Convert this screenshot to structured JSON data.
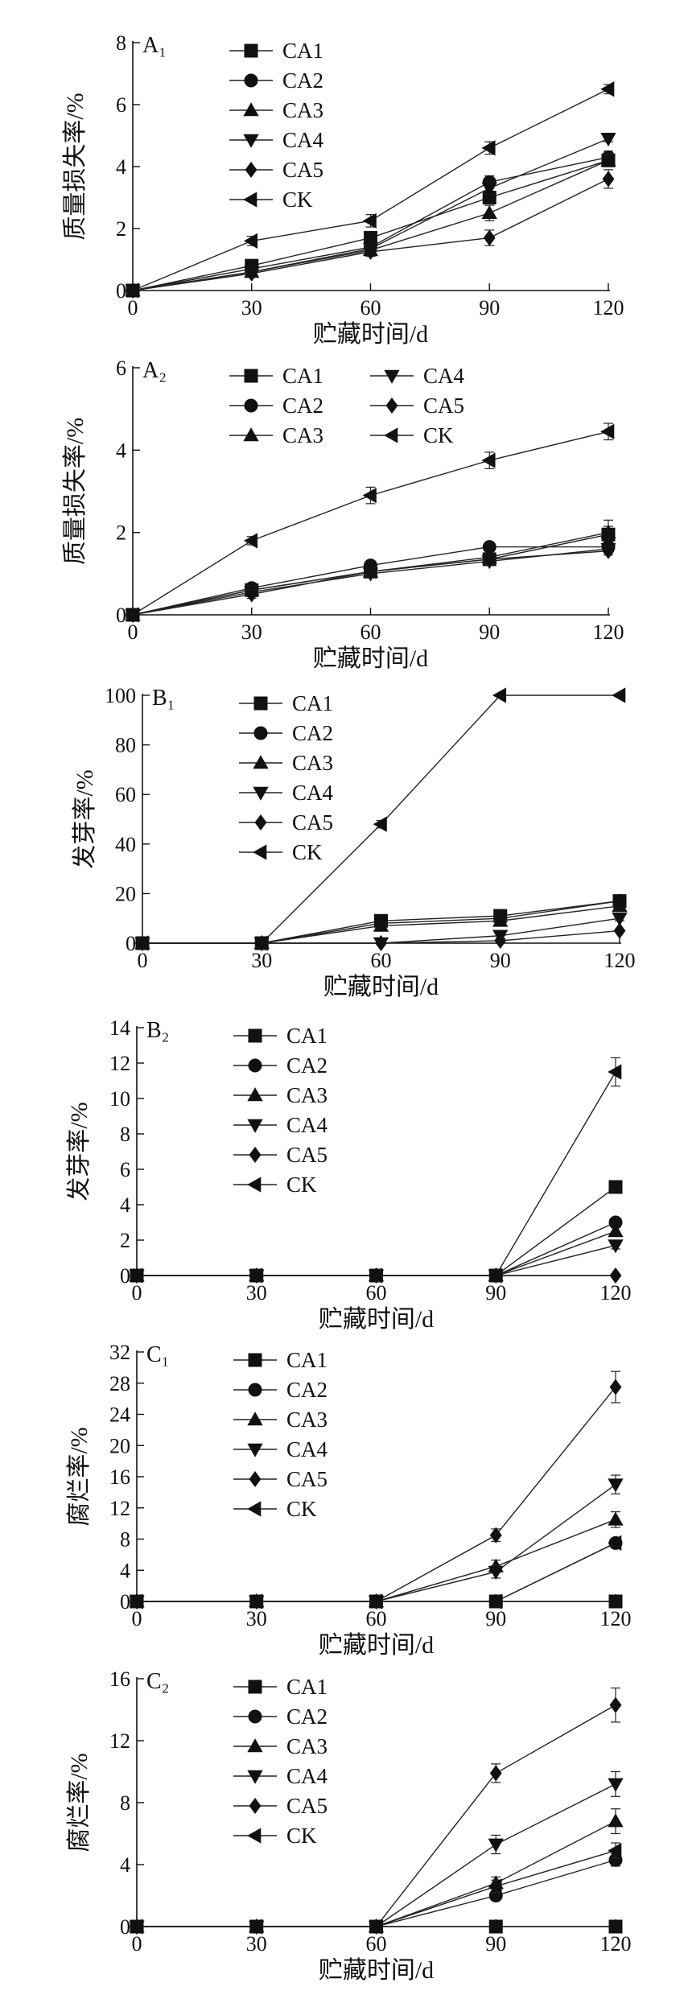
{
  "chart_data": [
    {
      "type": "line",
      "panel_label": "A₁",
      "xlabel": "贮藏时间/d",
      "ylabel": "质量损失率/%",
      "ylim": [
        0,
        8
      ],
      "yticks": [
        0,
        2,
        4,
        6,
        8
      ],
      "x": [
        0,
        30,
        60,
        90,
        120
      ],
      "xticks": [
        0,
        30,
        60,
        90,
        120
      ],
      "legend": {
        "position": "top-left",
        "columns": 1
      },
      "error_bars": true,
      "series": [
        {
          "name": "CA1",
          "marker": "square",
          "values": [
            0,
            0.8,
            1.7,
            3.0,
            4.2
          ],
          "errors": [
            0,
            0.1,
            0.15,
            0.2,
            0.15
          ]
        },
        {
          "name": "CA2",
          "marker": "circle",
          "values": [
            0,
            0.7,
            1.4,
            3.5,
            4.3
          ],
          "errors": [
            0,
            0.1,
            0.15,
            0.2,
            0.2
          ]
        },
        {
          "name": "CA3",
          "marker": "triangle-up",
          "values": [
            0,
            0.6,
            1.3,
            2.5,
            4.2
          ],
          "errors": [
            0,
            0.1,
            0.15,
            0.25,
            0.2
          ]
        },
        {
          "name": "CA4",
          "marker": "triangle-down",
          "values": [
            0,
            0.6,
            1.35,
            3.3,
            4.9
          ],
          "errors": [
            0,
            0.1,
            0.15,
            0.2,
            0.1
          ]
        },
        {
          "name": "CA5",
          "marker": "diamond",
          "values": [
            0,
            0.55,
            1.25,
            1.7,
            3.6
          ],
          "errors": [
            0,
            0.1,
            0.15,
            0.25,
            0.3
          ]
        },
        {
          "name": "CK",
          "marker": "triangle-left",
          "values": [
            0,
            1.6,
            2.25,
            4.6,
            6.5
          ],
          "errors": [
            0,
            0.15,
            0.2,
            0.2,
            0.15
          ]
        }
      ]
    },
    {
      "type": "line",
      "panel_label": "A₂",
      "xlabel": "贮藏时间/d",
      "ylabel": "质量损失率/%",
      "ylim": [
        0,
        6
      ],
      "yticks": [
        0,
        2,
        4,
        6
      ],
      "x": [
        0,
        30,
        60,
        90,
        120
      ],
      "xticks": [
        0,
        30,
        60,
        90,
        120
      ],
      "legend": {
        "position": "top-left",
        "columns": 2
      },
      "error_bars": true,
      "series": [
        {
          "name": "CA1",
          "marker": "square",
          "values": [
            0,
            0.6,
            1.05,
            1.35,
            1.95
          ],
          "errors": [
            0,
            0.1,
            0.1,
            0.15,
            0.2
          ]
        },
        {
          "name": "CA2",
          "marker": "circle",
          "values": [
            0,
            0.65,
            1.2,
            1.65,
            1.65
          ],
          "errors": [
            0,
            0.1,
            0.1,
            0.1,
            0.1
          ]
        },
        {
          "name": "CA3",
          "marker": "triangle-up",
          "values": [
            0,
            0.6,
            1.05,
            1.4,
            2.0
          ],
          "errors": [
            0,
            0.1,
            0.1,
            0.1,
            0.3
          ]
        },
        {
          "name": "CA4",
          "marker": "triangle-down",
          "values": [
            0,
            0.55,
            1.0,
            1.3,
            1.6
          ],
          "errors": [
            0,
            0.1,
            0.1,
            0.1,
            0.1
          ]
        },
        {
          "name": "CA5",
          "marker": "diamond",
          "values": [
            0,
            0.5,
            1.05,
            1.35,
            1.55
          ],
          "errors": [
            0,
            0.1,
            0.1,
            0.1,
            0.1
          ]
        },
        {
          "name": "CK",
          "marker": "triangle-left",
          "values": [
            0,
            1.8,
            2.9,
            3.75,
            4.45
          ],
          "errors": [
            0,
            0.1,
            0.2,
            0.2,
            0.2
          ]
        }
      ]
    },
    {
      "type": "line",
      "panel_label": "B₁",
      "xlabel": "贮藏时间/d",
      "ylabel": "发芽率/%",
      "ylim": [
        0,
        100
      ],
      "yticks": [
        0,
        20,
        40,
        60,
        80,
        100
      ],
      "x": [
        0,
        30,
        60,
        90,
        120
      ],
      "xticks": [
        0,
        30,
        60,
        90,
        120
      ],
      "legend": {
        "position": "top-left",
        "columns": 1
      },
      "error_bars": true,
      "series": [
        {
          "name": "CA1",
          "marker": "square",
          "values": [
            0,
            0,
            9,
            11,
            17
          ],
          "errors": [
            0,
            0,
            1,
            1,
            1
          ]
        },
        {
          "name": "CA2",
          "marker": "circle",
          "values": [
            0,
            0,
            8,
            10,
            17
          ],
          "errors": [
            0,
            0,
            1,
            1,
            1
          ]
        },
        {
          "name": "CA3",
          "marker": "triangle-up",
          "values": [
            0,
            0,
            7,
            9,
            15
          ],
          "errors": [
            0,
            0,
            1,
            1,
            1
          ]
        },
        {
          "name": "CA4",
          "marker": "triangle-down",
          "values": [
            0,
            0,
            0,
            3,
            10
          ],
          "errors": [
            0,
            0,
            0,
            1,
            1
          ]
        },
        {
          "name": "CA5",
          "marker": "diamond",
          "values": [
            0,
            0,
            0,
            1,
            5
          ],
          "errors": [
            0,
            0,
            0,
            0.5,
            0.5
          ]
        },
        {
          "name": "CK",
          "marker": "triangle-left",
          "values": [
            0,
            0,
            48,
            100,
            100
          ],
          "errors": [
            0,
            0,
            1.5,
            0,
            0
          ]
        }
      ]
    },
    {
      "type": "line",
      "panel_label": "B₂",
      "xlabel": "贮藏时间/d",
      "ylabel": "发芽率/%",
      "ylim": [
        0,
        14
      ],
      "yticks": [
        0,
        2,
        4,
        6,
        8,
        10,
        12,
        14
      ],
      "x": [
        0,
        30,
        60,
        90,
        120
      ],
      "xticks": [
        0,
        30,
        60,
        90,
        120
      ],
      "legend": {
        "position": "top-left",
        "columns": 1
      },
      "error_bars": true,
      "series": [
        {
          "name": "CA1",
          "marker": "square",
          "values": [
            0,
            0,
            0,
            0,
            5.0
          ],
          "errors": [
            0,
            0,
            0,
            0,
            0.2
          ]
        },
        {
          "name": "CA2",
          "marker": "circle",
          "values": [
            0,
            0,
            0,
            0,
            3.0
          ],
          "errors": [
            0,
            0,
            0,
            0,
            0.2
          ]
        },
        {
          "name": "CA3",
          "marker": "triangle-up",
          "values": [
            0,
            0,
            0,
            0,
            2.5
          ],
          "errors": [
            0,
            0,
            0,
            0,
            0.2
          ]
        },
        {
          "name": "CA4",
          "marker": "triangle-down",
          "values": [
            0,
            0,
            0,
            0,
            1.7
          ],
          "errors": [
            0,
            0,
            0,
            0,
            0.2
          ]
        },
        {
          "name": "CA5",
          "marker": "diamond",
          "values": [
            0,
            0,
            0,
            0,
            0
          ],
          "errors": [
            0,
            0,
            0,
            0,
            0
          ]
        },
        {
          "name": "CK",
          "marker": "triangle-left",
          "values": [
            0,
            0,
            0,
            0,
            11.5
          ],
          "errors": [
            0,
            0,
            0,
            0,
            0.8
          ]
        }
      ]
    },
    {
      "type": "line",
      "panel_label": "C₁",
      "xlabel": "贮藏时间/d",
      "ylabel": "腐烂率/%",
      "ylim": [
        0,
        32
      ],
      "yticks": [
        0,
        4,
        8,
        12,
        16,
        20,
        24,
        28,
        32
      ],
      "x": [
        0,
        30,
        60,
        90,
        120
      ],
      "xticks": [
        0,
        30,
        60,
        90,
        120
      ],
      "legend": {
        "position": "top-left",
        "columns": 1
      },
      "error_bars": true,
      "series": [
        {
          "name": "CA1",
          "marker": "square",
          "values": [
            0,
            0,
            0,
            0,
            0
          ],
          "errors": [
            0,
            0,
            0,
            0,
            0
          ]
        },
        {
          "name": "CA2",
          "marker": "circle",
          "values": [
            0,
            0,
            0,
            0,
            7.5
          ],
          "errors": [
            0,
            0,
            0,
            0,
            0.4
          ]
        },
        {
          "name": "CA3",
          "marker": "triangle-up",
          "values": [
            0,
            0,
            0,
            4.5,
            10.5
          ],
          "errors": [
            0,
            0,
            0,
            0.8,
            1.0
          ]
        },
        {
          "name": "CA4",
          "marker": "triangle-down",
          "values": [
            0,
            0,
            0,
            3.8,
            15.0
          ],
          "errors": [
            0,
            0,
            0,
            0.8,
            1.2
          ]
        },
        {
          "name": "CA5",
          "marker": "diamond",
          "values": [
            0,
            0,
            0,
            8.5,
            27.5
          ],
          "errors": [
            0,
            0,
            0,
            0.8,
            2.0
          ]
        },
        {
          "name": "CK",
          "marker": "triangle-left",
          "values": [
            0,
            0,
            0,
            0,
            7.5
          ],
          "errors": [
            0,
            0,
            0,
            0,
            0.4
          ]
        }
      ]
    },
    {
      "type": "line",
      "panel_label": "C₂",
      "xlabel": "贮藏时间/d",
      "ylabel": "腐烂率/%",
      "ylim": [
        0,
        16
      ],
      "yticks": [
        0,
        4,
        8,
        12,
        16
      ],
      "x": [
        0,
        30,
        60,
        90,
        120
      ],
      "xticks": [
        0,
        30,
        60,
        90,
        120
      ],
      "legend": {
        "position": "top-left",
        "columns": 1
      },
      "error_bars": true,
      "series": [
        {
          "name": "CA1",
          "marker": "square",
          "values": [
            0,
            0,
            0,
            0,
            0
          ],
          "errors": [
            0,
            0,
            0,
            0,
            0
          ]
        },
        {
          "name": "CA2",
          "marker": "circle",
          "values": [
            0,
            0,
            0,
            2.0,
            4.3
          ],
          "errors": [
            0,
            0,
            0,
            0.3,
            0.4
          ]
        },
        {
          "name": "CA3",
          "marker": "triangle-up",
          "values": [
            0,
            0,
            0,
            2.8,
            6.8
          ],
          "errors": [
            0,
            0,
            0,
            0.4,
            0.8
          ]
        },
        {
          "name": "CA4",
          "marker": "triangle-down",
          "values": [
            0,
            0,
            0,
            5.3,
            9.2
          ],
          "errors": [
            0,
            0,
            0,
            0.6,
            0.8
          ]
        },
        {
          "name": "CA5",
          "marker": "diamond",
          "values": [
            0,
            0,
            0,
            9.9,
            14.3
          ],
          "errors": [
            0,
            0,
            0,
            0.6,
            1.1
          ]
        },
        {
          "name": "CK",
          "marker": "triangle-left",
          "values": [
            0,
            0,
            0,
            2.6,
            4.9
          ],
          "errors": [
            0,
            0,
            0,
            0.4,
            0.5
          ]
        }
      ]
    }
  ]
}
